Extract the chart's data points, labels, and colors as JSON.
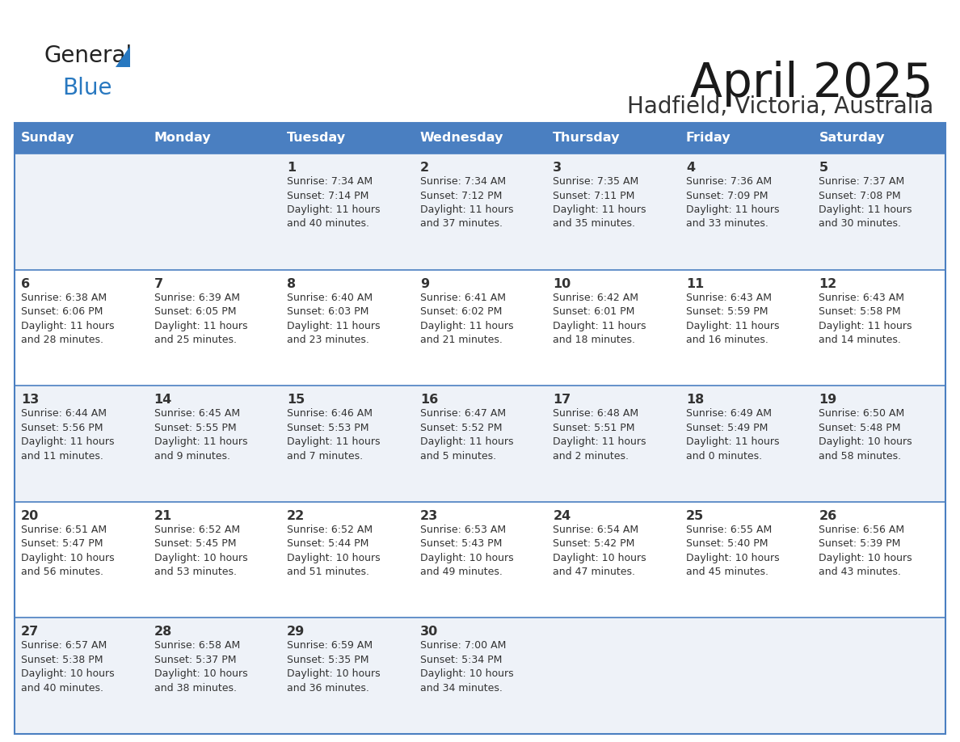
{
  "title": "April 2025",
  "subtitle": "Hadfield, Victoria, Australia",
  "header_bg": "#4a7fc1",
  "header_text_color": "#FFFFFF",
  "row_bg_odd": "#eef2f8",
  "row_bg_even": "#FFFFFF",
  "border_color": "#4a7fc1",
  "text_color": "#333333",
  "days_of_week": [
    "Sunday",
    "Monday",
    "Tuesday",
    "Wednesday",
    "Thursday",
    "Friday",
    "Saturday"
  ],
  "calendar": [
    [
      {
        "day": "",
        "info": ""
      },
      {
        "day": "",
        "info": ""
      },
      {
        "day": "1",
        "info": "Sunrise: 7:34 AM\nSunset: 7:14 PM\nDaylight: 11 hours\nand 40 minutes."
      },
      {
        "day": "2",
        "info": "Sunrise: 7:34 AM\nSunset: 7:12 PM\nDaylight: 11 hours\nand 37 minutes."
      },
      {
        "day": "3",
        "info": "Sunrise: 7:35 AM\nSunset: 7:11 PM\nDaylight: 11 hours\nand 35 minutes."
      },
      {
        "day": "4",
        "info": "Sunrise: 7:36 AM\nSunset: 7:09 PM\nDaylight: 11 hours\nand 33 minutes."
      },
      {
        "day": "5",
        "info": "Sunrise: 7:37 AM\nSunset: 7:08 PM\nDaylight: 11 hours\nand 30 minutes."
      }
    ],
    [
      {
        "day": "6",
        "info": "Sunrise: 6:38 AM\nSunset: 6:06 PM\nDaylight: 11 hours\nand 28 minutes."
      },
      {
        "day": "7",
        "info": "Sunrise: 6:39 AM\nSunset: 6:05 PM\nDaylight: 11 hours\nand 25 minutes."
      },
      {
        "day": "8",
        "info": "Sunrise: 6:40 AM\nSunset: 6:03 PM\nDaylight: 11 hours\nand 23 minutes."
      },
      {
        "day": "9",
        "info": "Sunrise: 6:41 AM\nSunset: 6:02 PM\nDaylight: 11 hours\nand 21 minutes."
      },
      {
        "day": "10",
        "info": "Sunrise: 6:42 AM\nSunset: 6:01 PM\nDaylight: 11 hours\nand 18 minutes."
      },
      {
        "day": "11",
        "info": "Sunrise: 6:43 AM\nSunset: 5:59 PM\nDaylight: 11 hours\nand 16 minutes."
      },
      {
        "day": "12",
        "info": "Sunrise: 6:43 AM\nSunset: 5:58 PM\nDaylight: 11 hours\nand 14 minutes."
      }
    ],
    [
      {
        "day": "13",
        "info": "Sunrise: 6:44 AM\nSunset: 5:56 PM\nDaylight: 11 hours\nand 11 minutes."
      },
      {
        "day": "14",
        "info": "Sunrise: 6:45 AM\nSunset: 5:55 PM\nDaylight: 11 hours\nand 9 minutes."
      },
      {
        "day": "15",
        "info": "Sunrise: 6:46 AM\nSunset: 5:53 PM\nDaylight: 11 hours\nand 7 minutes."
      },
      {
        "day": "16",
        "info": "Sunrise: 6:47 AM\nSunset: 5:52 PM\nDaylight: 11 hours\nand 5 minutes."
      },
      {
        "day": "17",
        "info": "Sunrise: 6:48 AM\nSunset: 5:51 PM\nDaylight: 11 hours\nand 2 minutes."
      },
      {
        "day": "18",
        "info": "Sunrise: 6:49 AM\nSunset: 5:49 PM\nDaylight: 11 hours\nand 0 minutes."
      },
      {
        "day": "19",
        "info": "Sunrise: 6:50 AM\nSunset: 5:48 PM\nDaylight: 10 hours\nand 58 minutes."
      }
    ],
    [
      {
        "day": "20",
        "info": "Sunrise: 6:51 AM\nSunset: 5:47 PM\nDaylight: 10 hours\nand 56 minutes."
      },
      {
        "day": "21",
        "info": "Sunrise: 6:52 AM\nSunset: 5:45 PM\nDaylight: 10 hours\nand 53 minutes."
      },
      {
        "day": "22",
        "info": "Sunrise: 6:52 AM\nSunset: 5:44 PM\nDaylight: 10 hours\nand 51 minutes."
      },
      {
        "day": "23",
        "info": "Sunrise: 6:53 AM\nSunset: 5:43 PM\nDaylight: 10 hours\nand 49 minutes."
      },
      {
        "day": "24",
        "info": "Sunrise: 6:54 AM\nSunset: 5:42 PM\nDaylight: 10 hours\nand 47 minutes."
      },
      {
        "day": "25",
        "info": "Sunrise: 6:55 AM\nSunset: 5:40 PM\nDaylight: 10 hours\nand 45 minutes."
      },
      {
        "day": "26",
        "info": "Sunrise: 6:56 AM\nSunset: 5:39 PM\nDaylight: 10 hours\nand 43 minutes."
      }
    ],
    [
      {
        "day": "27",
        "info": "Sunrise: 6:57 AM\nSunset: 5:38 PM\nDaylight: 10 hours\nand 40 minutes."
      },
      {
        "day": "28",
        "info": "Sunrise: 6:58 AM\nSunset: 5:37 PM\nDaylight: 10 hours\nand 38 minutes."
      },
      {
        "day": "29",
        "info": "Sunrise: 6:59 AM\nSunset: 5:35 PM\nDaylight: 10 hours\nand 36 minutes."
      },
      {
        "day": "30",
        "info": "Sunrise: 7:00 AM\nSunset: 5:34 PM\nDaylight: 10 hours\nand 34 minutes."
      },
      {
        "day": "",
        "info": ""
      },
      {
        "day": "",
        "info": ""
      },
      {
        "day": "",
        "info": ""
      }
    ]
  ],
  "logo_general_color": "#222222",
  "logo_blue_color": "#2878c0",
  "logo_triangle_color": "#2878c0"
}
